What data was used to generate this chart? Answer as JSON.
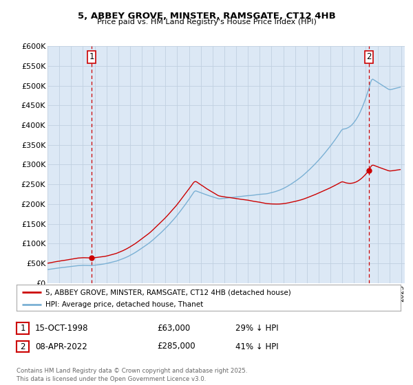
{
  "title_line1": "5, ABBEY GROVE, MINSTER, RAMSGATE, CT12 4HB",
  "title_line2": "Price paid vs. HM Land Registry's House Price Index (HPI)",
  "ylim": [
    0,
    600000
  ],
  "yticks": [
    0,
    50000,
    100000,
    150000,
    200000,
    250000,
    300000,
    350000,
    400000,
    450000,
    500000,
    550000,
    600000
  ],
  "ytick_labels": [
    "£0",
    "£50K",
    "£100K",
    "£150K",
    "£200K",
    "£250K",
    "£300K",
    "£350K",
    "£400K",
    "£450K",
    "£500K",
    "£550K",
    "£600K"
  ],
  "legend_line1": "5, ABBEY GROVE, MINSTER, RAMSGATE, CT12 4HB (detached house)",
  "legend_line2": "HPI: Average price, detached house, Thanet",
  "line1_color": "#cc0000",
  "line2_color": "#7ab0d4",
  "vline_color": "#cc0000",
  "chart_bg": "#dce8f5",
  "annotation1_label": "1",
  "annotation2_label": "2",
  "sale1_date": "15-OCT-1998",
  "sale1_price": "£63,000",
  "sale1_pct": "29% ↓ HPI",
  "sale2_date": "08-APR-2022",
  "sale2_price": "£285,000",
  "sale2_pct": "41% ↓ HPI",
  "footnote": "Contains HM Land Registry data © Crown copyright and database right 2025.\nThis data is licensed under the Open Government Licence v3.0.",
  "background_color": "#ffffff",
  "grid_color": "#c0d0e0"
}
